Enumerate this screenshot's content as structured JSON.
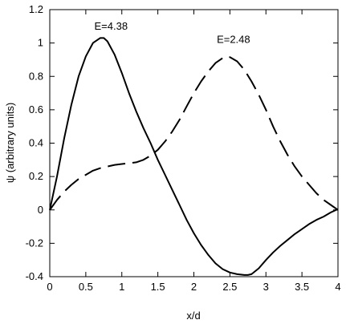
{
  "chart_data": {
    "type": "line",
    "title": "",
    "xlabel": "x/d",
    "ylabel": "ψ (arbitrary units)",
    "xlim": [
      0,
      4
    ],
    "ylim": [
      -0.4,
      1.2
    ],
    "xticks": [
      0,
      0.5,
      1,
      1.5,
      2,
      2.5,
      3,
      3.5,
      4
    ],
    "xtick_labels": [
      "0",
      "0.5",
      "1",
      "1.5",
      "2",
      "2.5",
      "3",
      "3.5",
      "4"
    ],
    "yticks": [
      -0.4,
      -0.2,
      0,
      0.2,
      0.4,
      0.6,
      0.8,
      1,
      1.2
    ],
    "ytick_labels": [
      "-0.4",
      "-0.2",
      "0",
      "0.2",
      "0.4",
      "0.6",
      "0.8",
      "1",
      "1.2"
    ],
    "grid": false,
    "legend": "none",
    "series": [
      {
        "style": "solid",
        "color": "#000000",
        "x": [
          0,
          0.1,
          0.2,
          0.3,
          0.4,
          0.5,
          0.6,
          0.7,
          0.75,
          0.8,
          0.9,
          1.0,
          1.1,
          1.2,
          1.3,
          1.4,
          1.5,
          1.6,
          1.7,
          1.8,
          1.9,
          2.0,
          2.1,
          2.2,
          2.3,
          2.4,
          2.5,
          2.6,
          2.7,
          2.75,
          2.8,
          2.9,
          3.0,
          3.1,
          3.2,
          3.3,
          3.4,
          3.5,
          3.6,
          3.7,
          3.8,
          3.9,
          4.0
        ],
        "y": [
          0,
          0.2,
          0.43,
          0.63,
          0.8,
          0.92,
          1.0,
          1.03,
          1.03,
          1.01,
          0.93,
          0.82,
          0.7,
          0.59,
          0.49,
          0.4,
          0.3,
          0.21,
          0.12,
          0.03,
          -0.06,
          -0.14,
          -0.21,
          -0.27,
          -0.32,
          -0.355,
          -0.375,
          -0.385,
          -0.39,
          -0.39,
          -0.385,
          -0.35,
          -0.3,
          -0.255,
          -0.215,
          -0.18,
          -0.145,
          -0.115,
          -0.085,
          -0.06,
          -0.04,
          -0.015,
          0.005
        ]
      },
      {
        "style": "dashed",
        "color": "#000000",
        "x": [
          0,
          0.1,
          0.2,
          0.3,
          0.4,
          0.5,
          0.6,
          0.7,
          0.8,
          0.9,
          1.0,
          1.1,
          1.2,
          1.3,
          1.4,
          1.5,
          1.6,
          1.7,
          1.8,
          1.9,
          2.0,
          2.1,
          2.2,
          2.3,
          2.4,
          2.45,
          2.5,
          2.6,
          2.7,
          2.8,
          2.9,
          3.0,
          3.1,
          3.2,
          3.3,
          3.4,
          3.5,
          3.6,
          3.7,
          3.8,
          3.9,
          4.0
        ],
        "y": [
          0,
          0.06,
          0.11,
          0.15,
          0.185,
          0.21,
          0.235,
          0.25,
          0.26,
          0.27,
          0.275,
          0.28,
          0.285,
          0.3,
          0.325,
          0.36,
          0.41,
          0.47,
          0.54,
          0.62,
          0.7,
          0.77,
          0.83,
          0.88,
          0.91,
          0.92,
          0.915,
          0.89,
          0.84,
          0.77,
          0.69,
          0.6,
          0.5,
          0.41,
          0.33,
          0.26,
          0.2,
          0.15,
          0.1,
          0.06,
          0.03,
          0.0
        ]
      }
    ],
    "annotations": [
      {
        "text": "E=4.38",
        "x": 0.85,
        "y": 1.08
      },
      {
        "text": "E=2.48",
        "x": 2.55,
        "y": 1.0
      }
    ]
  }
}
